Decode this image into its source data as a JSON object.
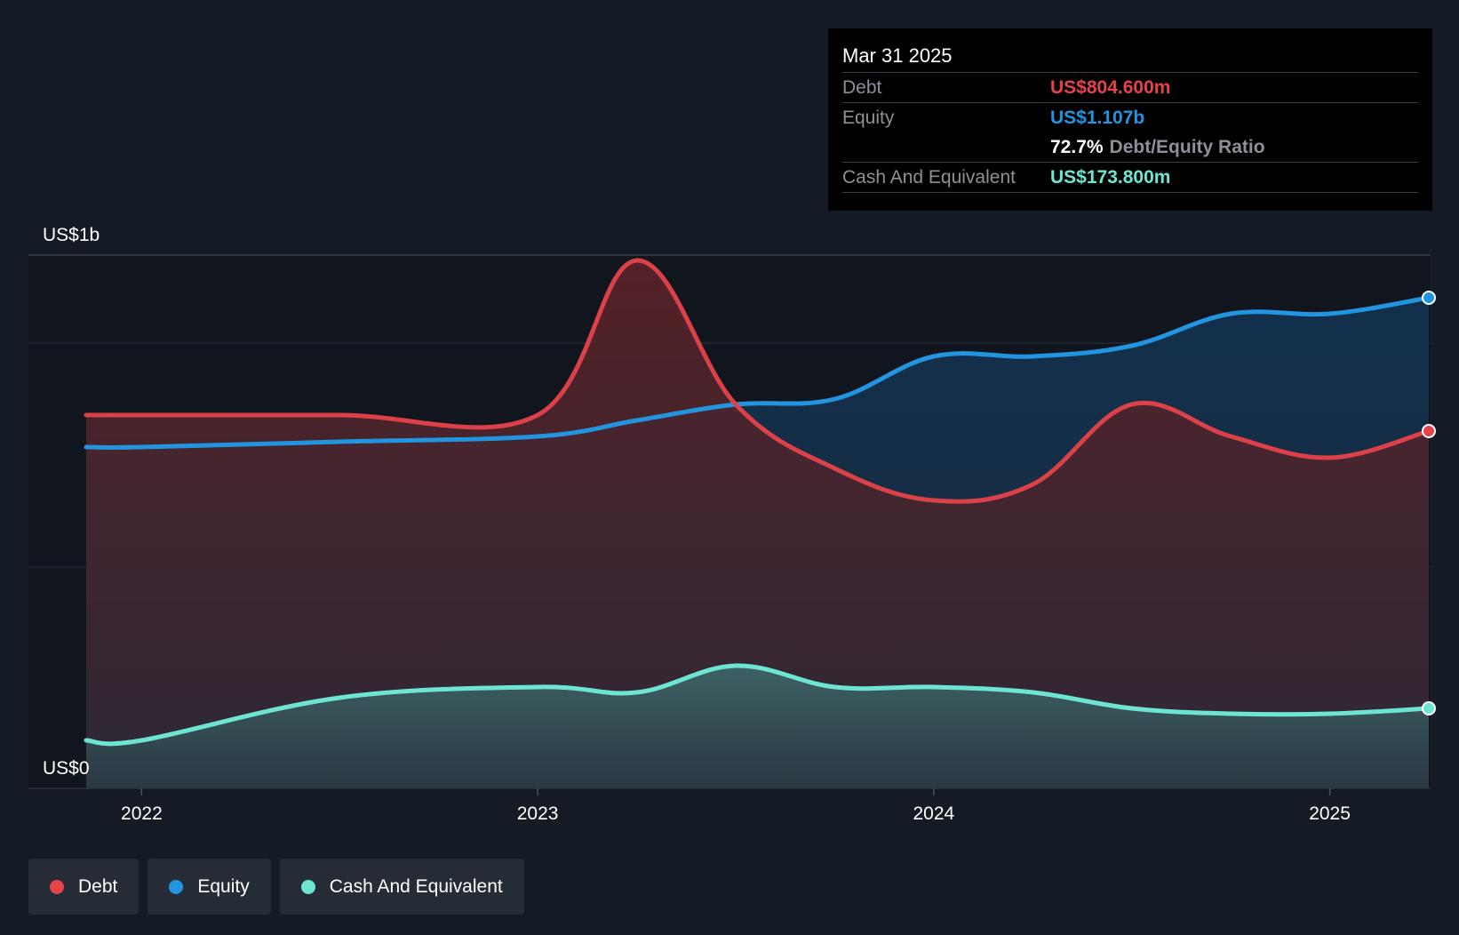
{
  "tooltip": {
    "date": "Mar 31 2025",
    "rows": [
      {
        "label": "Debt",
        "value": "US$804.600m"
      },
      {
        "label": "Equity",
        "value": "US$1.107b"
      },
      {
        "ratio_value": "72.7%",
        "ratio_label": "Debt/Equity Ratio"
      },
      {
        "label": "Cash And Equivalent",
        "value": "US$173.800m"
      }
    ]
  },
  "legend": [
    {
      "label": "Debt",
      "color": "#e5424a"
    },
    {
      "label": "Equity",
      "color": "#2394df"
    },
    {
      "label": "Cash And Equivalent",
      "color": "#6ee5d3"
    }
  ],
  "colors": {
    "debt": "#e5424a",
    "equity": "#2394df",
    "cash": "#6ee5d3",
    "background": "#151b24"
  },
  "chart_data": {
    "type": "area",
    "y_axis_labels": [
      "US$1b",
      "US$0"
    ],
    "x_tick_labels": [
      "2022",
      "2023",
      "2024",
      "2025"
    ],
    "x_ticks": [
      2022,
      2023,
      2024,
      2025
    ],
    "xlim": [
      2021.86,
      2025.25
    ],
    "ylim": [
      0,
      1.0
    ],
    "gridlines": [
      0,
      0.415,
      0.835,
      1.0
    ],
    "units": "US$ billions",
    "x": [
      2021.86,
      2022.0,
      2022.5,
      2023.0,
      2023.25,
      2023.5,
      2023.75,
      2024.0,
      2024.25,
      2024.5,
      2024.75,
      2025.0,
      2025.25
    ],
    "series": [
      {
        "name": "Debt",
        "values": [
          0.7,
          0.7,
          0.7,
          0.7,
          0.99,
          0.72,
          0.6,
          0.54,
          0.57,
          0.72,
          0.66,
          0.62,
          0.67
        ]
      },
      {
        "name": "Equity",
        "values": [
          0.64,
          0.64,
          0.65,
          0.66,
          0.69,
          0.72,
          0.73,
          0.81,
          0.81,
          0.83,
          0.89,
          0.89,
          0.92
        ]
      },
      {
        "name": "Cash And Equivalent",
        "values": [
          0.09,
          0.09,
          0.17,
          0.19,
          0.18,
          0.23,
          0.19,
          0.19,
          0.18,
          0.15,
          0.14,
          0.14,
          0.15
        ]
      }
    ]
  }
}
